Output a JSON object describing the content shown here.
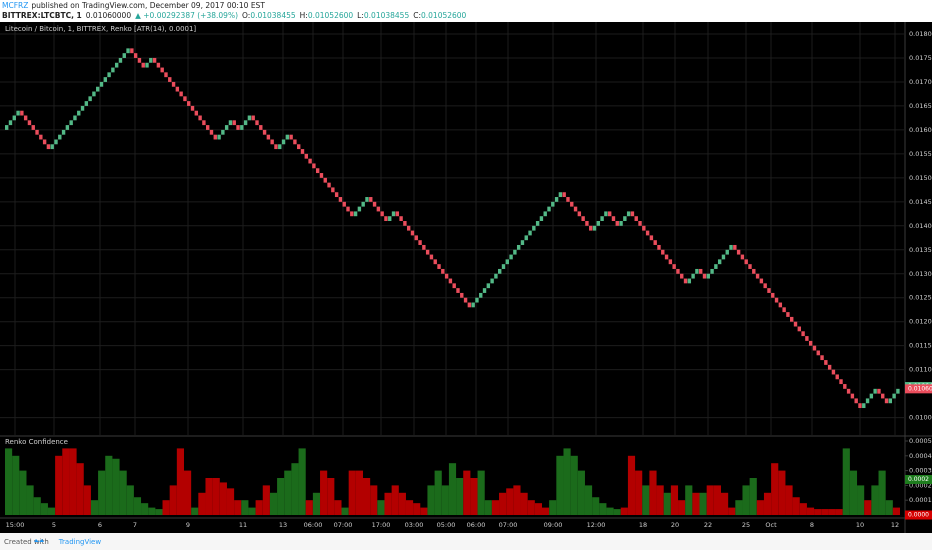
{
  "header": {
    "author": "MCFRZ",
    "published": "published on TradingView.com, December 09, 2017 00:10 EST",
    "symbol": "BITTREX:LTCBTC, 1",
    "last": "0.01060000",
    "change": "▲ +0.00292387 (+38.09%)",
    "ohlc": [
      {
        "label": "O:",
        "value": "0.01038455"
      },
      {
        "label": "H:",
        "value": "0.01052600"
      },
      {
        "label": "L:",
        "value": "0.01038455"
      },
      {
        "label": "C:",
        "value": "0.01052600"
      }
    ]
  },
  "footer": {
    "prefix": "Created with",
    "brand": "TradingView"
  },
  "chart_data": [
    {
      "type": "renko",
      "title": "Litecoin / Bitcoin, 1, BITTREX, Renko [ATR(14), 0.0001]",
      "box_size": 0.0001,
      "up_color": "#53b987",
      "down_color": "#eb4d5c",
      "pivots": [
        0.016,
        0.0164,
        0.0156,
        0.0177,
        0.0173,
        0.0175,
        0.0158,
        0.0162,
        0.016,
        0.0163,
        0.0156,
        0.0159,
        0.0142,
        0.0146,
        0.0141,
        0.0143,
        0.0123,
        0.0147,
        0.0139,
        0.0143,
        0.014,
        0.0143,
        0.0128,
        0.0131,
        0.0129,
        0.0136,
        0.0102,
        0.0106,
        0.0103,
        0.0106
      ],
      "ylim": [
        0.0097,
        0.01825
      ],
      "yticks": [
        {
          "value": 0.018,
          "label": "0.01800000"
        },
        {
          "value": 0.0175,
          "label": "0.01750000"
        },
        {
          "value": 0.017,
          "label": "0.01700000"
        },
        {
          "value": 0.0165,
          "label": "0.01650000"
        },
        {
          "value": 0.016,
          "label": "0.01600000"
        },
        {
          "value": 0.0155,
          "label": "0.01550000"
        },
        {
          "value": 0.015,
          "label": "0.01500000"
        },
        {
          "value": 0.0145,
          "label": "0.01450000"
        },
        {
          "value": 0.014,
          "label": "0.01400000"
        },
        {
          "value": 0.0135,
          "label": "0.01350000"
        },
        {
          "value": 0.013,
          "label": "0.01300000"
        },
        {
          "value": 0.0125,
          "label": "0.01250000"
        },
        {
          "value": 0.012,
          "label": "0.01200000"
        },
        {
          "value": 0.0115,
          "label": "0.01150000"
        },
        {
          "value": 0.011,
          "label": "0.01100000"
        },
        {
          "value": 0.01,
          "label": "0.01000000"
        }
      ],
      "markers": [
        {
          "value": 0.01064745,
          "label": "0.01064745",
          "color": "#53b987"
        },
        {
          "value": 0.0106,
          "label": "0.01060000",
          "color": "#eb4d5c"
        }
      ],
      "grid": true,
      "x": [
        "15:00",
        "5",
        "6",
        "7",
        "9",
        "11",
        "13",
        "06:00",
        "07:00",
        "17:00",
        "03:00",
        "05:00",
        "06:00",
        "07:00",
        "09:00",
        "12:00",
        "18",
        "20",
        "22",
        "25",
        "Oct",
        "8",
        "10",
        "12"
      ]
    },
    {
      "type": "runs-bar",
      "title": "Renko Confidence",
      "ylim": [
        0,
        0.0005
      ],
      "yticks": [
        0.0001,
        0.0002,
        0.0003,
        0.0004,
        0.0005
      ],
      "markers": [
        {
          "value": 0.00024,
          "label": "0.0002",
          "color": "#1e7d1e"
        },
        {
          "value": 0,
          "label": "0.0000",
          "color": "#d50000"
        }
      ],
      "series": [
        {
          "color": "#1b6b1b",
          "values": [
            0.00045,
            0.0004,
            0.0003,
            0.0002,
            0.00012,
            8e-05,
            5e-05
          ]
        },
        {
          "color": "#b30000",
          "values": [
            0.0004,
            0.00045,
            0.00045,
            0.00035,
            0.0002
          ]
        },
        {
          "color": "#1b6b1b",
          "values": [
            0.0001,
            0.0003,
            0.0004,
            0.00038,
            0.0003,
            0.0002,
            0.00012,
            8e-05,
            5e-05,
            4e-05
          ]
        },
        {
          "color": "#b30000",
          "values": [
            0.0001,
            0.0002,
            0.00045,
            0.0003
          ]
        },
        {
          "color": "#1b6b1b",
          "values": [
            5e-05
          ]
        },
        {
          "color": "#b30000",
          "values": [
            0.00015,
            0.00025,
            0.00025,
            0.00022,
            0.00018,
            0.0001
          ]
        },
        {
          "color": "#1b6b1b",
          "values": [
            0.0001,
            5e-05
          ]
        },
        {
          "color": "#b30000",
          "values": [
            0.0001,
            0.0002
          ]
        },
        {
          "color": "#1b6b1b",
          "values": [
            0.00015,
            0.00025,
            0.0003,
            0.00035,
            0.00045
          ]
        },
        {
          "color": "#b30000",
          "values": [
            0.0001
          ]
        },
        {
          "color": "#1b6b1b",
          "values": [
            0.00015
          ]
        },
        {
          "color": "#b30000",
          "values": [
            0.0003,
            0.00025,
            0.0001
          ]
        },
        {
          "color": "#1b6b1b",
          "values": [
            5e-05
          ]
        },
        {
          "color": "#b30000",
          "values": [
            0.0003,
            0.0003,
            0.00025,
            0.0002
          ]
        },
        {
          "color": "#1b6b1b",
          "values": [
            0.0001
          ]
        },
        {
          "color": "#b30000",
          "values": [
            0.00015,
            0.0002,
            0.00015,
            0.0001,
            8e-05,
            5e-05
          ]
        },
        {
          "color": "#1b6b1b",
          "values": [
            0.0002,
            0.0003,
            0.0002,
            0.00035,
            0.00025
          ]
        },
        {
          "color": "#b30000",
          "values": [
            0.0003,
            0.00025
          ]
        },
        {
          "color": "#1b6b1b",
          "values": [
            0.0003,
            0.0001
          ]
        },
        {
          "color": "#b30000",
          "values": [
            0.0001,
            0.00015,
            0.00018,
            0.0002,
            0.00015,
            0.0001,
            8e-05,
            5e-05
          ]
        },
        {
          "color": "#1b6b1b",
          "values": [
            0.0001,
            0.0004,
            0.00045,
            0.0004,
            0.0003,
            0.0002,
            0.00012,
            8e-05,
            5e-05,
            4e-05
          ]
        },
        {
          "color": "#b30000",
          "values": [
            5e-05,
            0.0004,
            0.0003
          ]
        },
        {
          "color": "#1b6b1b",
          "values": [
            0.0002
          ]
        },
        {
          "color": "#b30000",
          "values": [
            0.0003,
            0.0002
          ]
        },
        {
          "color": "#1b6b1b",
          "values": [
            0.00015
          ]
        },
        {
          "color": "#b30000",
          "values": [
            0.0002,
            0.0001
          ]
        },
        {
          "color": "#1b6b1b",
          "values": [
            0.0002
          ]
        },
        {
          "color": "#b30000",
          "values": [
            0.00015
          ]
        },
        {
          "color": "#1b6b1b",
          "values": [
            0.00015
          ]
        },
        {
          "color": "#b30000",
          "values": [
            0.0002,
            0.0002,
            0.00015,
            5e-05
          ]
        },
        {
          "color": "#1b6b1b",
          "values": [
            0.0001,
            0.0002,
            0.00025
          ]
        },
        {
          "color": "#b30000",
          "values": [
            0.0001,
            0.00015,
            0.00035,
            0.0003,
            0.0002,
            0.00012,
            8e-05,
            5e-05,
            4e-05,
            4e-05,
            4e-05,
            4e-05
          ]
        },
        {
          "color": "#1b6b1b",
          "values": [
            0.00045,
            0.0003,
            0.0002
          ]
        },
        {
          "color": "#b30000",
          "values": [
            0.0001
          ]
        },
        {
          "color": "#1b6b1b",
          "values": [
            0.0002,
            0.0003,
            0.0001
          ]
        },
        {
          "color": "#b30000",
          "values": [
            5e-05
          ]
        }
      ]
    }
  ]
}
